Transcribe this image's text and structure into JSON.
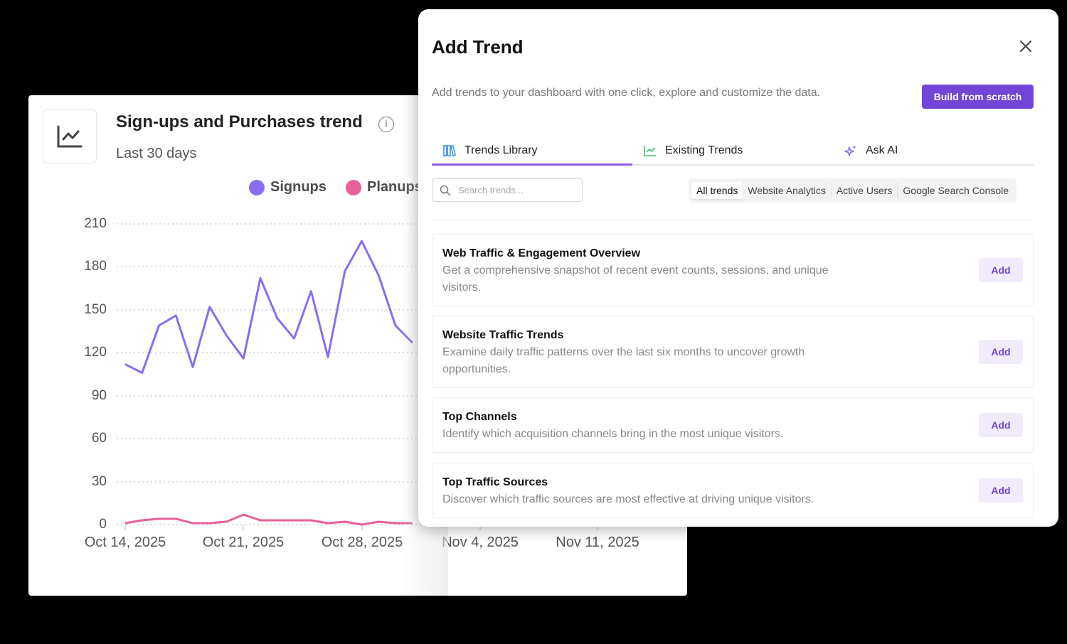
{
  "card": {
    "title": "Sign-ups and Purchases trend",
    "subtitle": "Last 30 days",
    "icon": "line-chart-icon",
    "info_icon": "i"
  },
  "chart_data": {
    "type": "line",
    "title": "Sign-ups and Purchases trend",
    "subtitle": "Last 30 days",
    "xlabel": "",
    "ylabel": "",
    "ylim": [
      0,
      210
    ],
    "yticks": [
      "210",
      "180",
      "150",
      "120",
      "90",
      "60",
      "30",
      "0"
    ],
    "xticks": [
      "Oct 14, 2025",
      "Oct 21, 2025",
      "Oct 28, 2025",
      "Nov 4, 2025",
      "Nov 11, 2025"
    ],
    "grid": "dotted horizontal",
    "legend_position": "top",
    "x": [
      "Oct 14",
      "Oct 15",
      "Oct 16",
      "Oct 17",
      "Oct 18",
      "Oct 19",
      "Oct 20",
      "Oct 21",
      "Oct 22",
      "Oct 23",
      "Oct 24",
      "Oct 25",
      "Oct 26",
      "Oct 27",
      "Oct 28",
      "Oct 29",
      "Oct 30",
      "Oct 31"
    ],
    "series": [
      {
        "name": "Signups",
        "color": "#8b6cf0",
        "values": [
          112,
          106,
          139,
          146,
          110,
          152,
          132,
          116,
          172,
          144,
          130,
          163,
          117,
          177,
          198,
          174,
          139,
          127
        ]
      },
      {
        "name": "Planups",
        "color": "#e8609a",
        "values": [
          1,
          3,
          4,
          4,
          1,
          1,
          2,
          7,
          3,
          3,
          3,
          3,
          1,
          2,
          0,
          2,
          1,
          1
        ]
      }
    ]
  },
  "modal": {
    "title": "Add Trend",
    "description": "Add trends to your dashboard with one click, explore and customize the data.",
    "build_button": "Build from scratch",
    "tabs": [
      {
        "label": "Trends Library",
        "icon": "library-icon",
        "active": true
      },
      {
        "label": "Existing Trends",
        "icon": "line-chart-icon",
        "active": false
      },
      {
        "label": "Ask AI",
        "icon": "sparkle-icon",
        "active": false
      }
    ],
    "search": {
      "placeholder": "Search trends...",
      "value": ""
    },
    "filters": [
      "All trends",
      "Website Analytics",
      "Active Users",
      "Google Search Console"
    ],
    "active_filter": "All trends",
    "trends": [
      {
        "title": "Web Traffic & Engagement Overview",
        "description": "Get a comprehensive snapshot of recent event counts, sessions, and unique visitors.",
        "button": "Add"
      },
      {
        "title": "Website Traffic Trends",
        "description": "Examine daily traffic patterns over the last six months to uncover growth opportunities.",
        "button": "Add"
      },
      {
        "title": "Top Channels",
        "description": "Identify which acquisition channels bring in the most unique visitors.",
        "button": "Add"
      },
      {
        "title": "Top Traffic Sources",
        "description": "Discover which traffic sources are most effective at driving unique visitors.",
        "button": "Add"
      }
    ]
  },
  "colors": {
    "accent": "#7345d6",
    "signups": "#8b6cf0",
    "planups": "#e8609a",
    "add_bg": "#f1ebfc"
  }
}
